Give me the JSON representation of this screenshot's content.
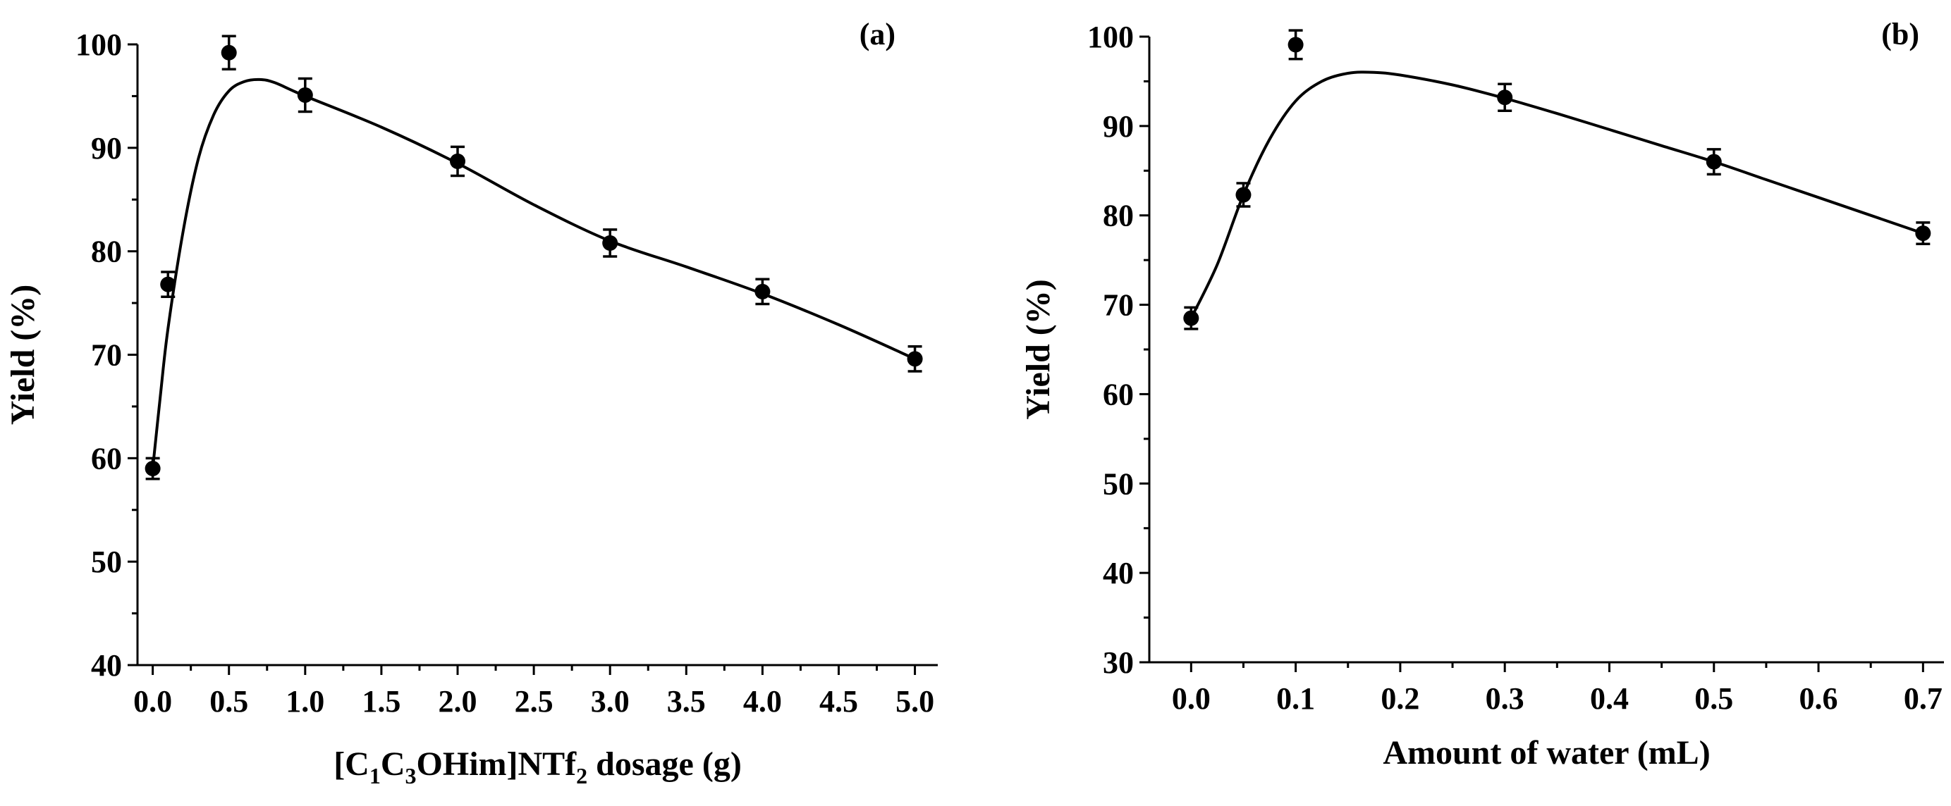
{
  "chart_data": [
    {
      "type": "scatter",
      "panel": "(a)",
      "xlabel": {
        "prefix": "[C",
        "sub1": "1",
        "mid1": "C",
        "sub2": "3",
        "mid2": "OHim]NTf",
        "sub3": "2",
        "suffix": " dosage (g)"
      },
      "ylabel": "Yield (%)",
      "xlim": [
        -0.1,
        5.15
      ],
      "ylim": [
        40,
        100
      ],
      "xticks": [
        0.0,
        0.5,
        1.0,
        1.5,
        2.0,
        2.5,
        3.0,
        3.5,
        4.0,
        4.5,
        5.0
      ],
      "xticklabels": [
        "0.0",
        "0.5",
        "1.0",
        "1.5",
        "2.0",
        "2.5",
        "3.0",
        "3.5",
        "4.0",
        "4.5",
        "5.0"
      ],
      "yticks": [
        40,
        50,
        60,
        70,
        80,
        90,
        100
      ],
      "yticklabels": [
        "40",
        "50",
        "60",
        "70",
        "80",
        "90",
        "100"
      ],
      "points": [
        {
          "x": 0.0,
          "y": 59.0,
          "err": 1.0
        },
        {
          "x": 0.1,
          "y": 76.8,
          "err": 1.2
        },
        {
          "x": 0.5,
          "y": 99.2,
          "err": 1.6
        },
        {
          "x": 1.0,
          "y": 95.1,
          "err": 1.6
        },
        {
          "x": 2.0,
          "y": 88.7,
          "err": 1.4
        },
        {
          "x": 3.0,
          "y": 80.8,
          "err": 1.3
        },
        {
          "x": 4.0,
          "y": 76.1,
          "err": 1.2
        },
        {
          "x": 5.0,
          "y": 69.6,
          "err": 1.2
        }
      ],
      "fit_curve": [
        [
          0.0,
          59.0
        ],
        [
          0.05,
          66.0
        ],
        [
          0.1,
          72.5
        ],
        [
          0.2,
          82.0
        ],
        [
          0.3,
          89.0
        ],
        [
          0.4,
          93.2
        ],
        [
          0.5,
          95.5
        ],
        [
          0.6,
          96.4
        ],
        [
          0.7,
          96.6
        ],
        [
          0.8,
          96.3
        ],
        [
          1.0,
          95.0
        ],
        [
          1.5,
          92.0
        ],
        [
          2.0,
          88.5
        ],
        [
          2.5,
          84.5
        ],
        [
          3.0,
          81.0
        ],
        [
          3.5,
          78.5
        ],
        [
          4.0,
          75.9
        ],
        [
          4.5,
          72.9
        ],
        [
          5.0,
          69.6
        ]
      ]
    },
    {
      "type": "scatter",
      "panel": "(b)",
      "xlabel": "Amount of water (mL)",
      "ylabel": "Yield (%)",
      "xlim": [
        -0.04,
        0.72
      ],
      "ylim": [
        30,
        100
      ],
      "xticks": [
        0.0,
        0.1,
        0.2,
        0.3,
        0.4,
        0.5,
        0.6,
        0.7
      ],
      "xticklabels": [
        "0.0",
        "0.1",
        "0.2",
        "0.3",
        "0.4",
        "0.5",
        "0.6",
        "0.7"
      ],
      "yticks": [
        30,
        40,
        50,
        60,
        70,
        80,
        90,
        100
      ],
      "yticklabels": [
        "30",
        "40",
        "50",
        "60",
        "70",
        "80",
        "90",
        "100"
      ],
      "points": [
        {
          "x": 0.0,
          "y": 68.5,
          "err": 1.2
        },
        {
          "x": 0.05,
          "y": 82.3,
          "err": 1.3
        },
        {
          "x": 0.1,
          "y": 99.1,
          "err": 1.6
        },
        {
          "x": 0.3,
          "y": 93.2,
          "err": 1.5
        },
        {
          "x": 0.5,
          "y": 86.0,
          "err": 1.4
        },
        {
          "x": 0.7,
          "y": 78.0,
          "err": 1.2
        }
      ],
      "fit_curve": [
        [
          0.0,
          68.5
        ],
        [
          0.025,
          74.5
        ],
        [
          0.05,
          82.3
        ],
        [
          0.075,
          88.5
        ],
        [
          0.1,
          92.8
        ],
        [
          0.125,
          95.0
        ],
        [
          0.15,
          95.9
        ],
        [
          0.175,
          96.0
        ],
        [
          0.2,
          95.7
        ],
        [
          0.25,
          94.6
        ],
        [
          0.3,
          93.1
        ],
        [
          0.35,
          91.4
        ],
        [
          0.4,
          89.6
        ],
        [
          0.45,
          87.8
        ],
        [
          0.5,
          86.0
        ],
        [
          0.55,
          84.0
        ],
        [
          0.6,
          82.0
        ],
        [
          0.65,
          80.0
        ],
        [
          0.7,
          78.0
        ]
      ]
    }
  ]
}
